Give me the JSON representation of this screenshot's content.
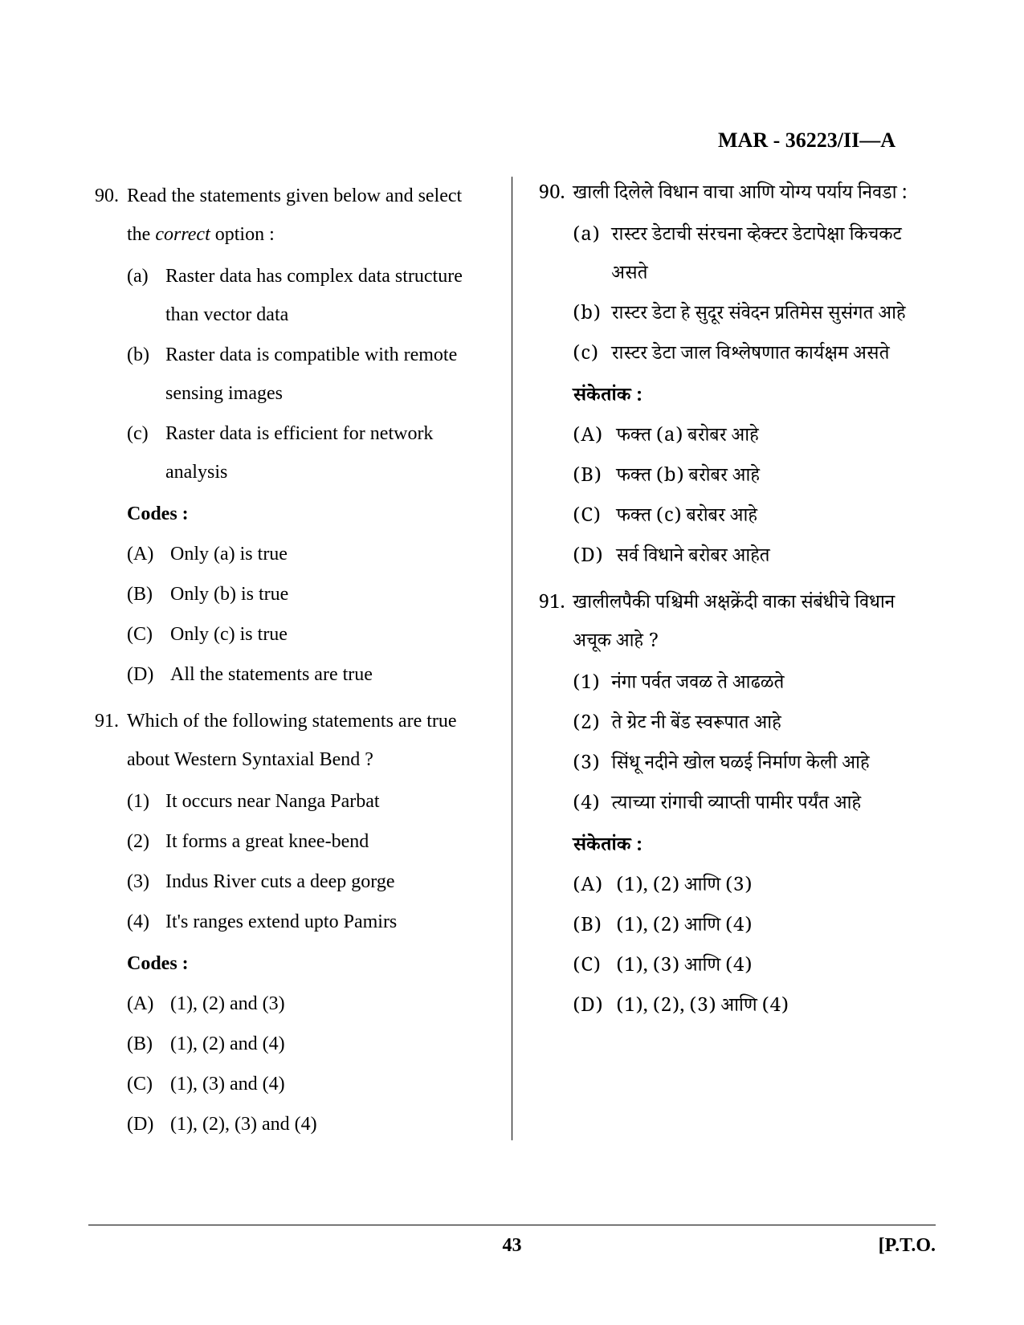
{
  "header": {
    "code": "MAR - 36223/II—A"
  },
  "footer": {
    "page_num": "43",
    "pto": "[P.T.O."
  },
  "left": {
    "q90": {
      "num": "90.",
      "text_pre": "Read the statements given below and select the ",
      "text_italic": "correct",
      "text_post": " option :",
      "subs": [
        {
          "label": "(a)",
          "text": "Raster data has complex data structure than vector data"
        },
        {
          "label": "(b)",
          "text": "Raster data is compatible with remote sensing images"
        },
        {
          "label": "(c)",
          "text": "Raster data is efficient for network analysis"
        }
      ],
      "codes_label": "Codes :",
      "codes": [
        {
          "label": "(A)",
          "text": "Only (a) is true"
        },
        {
          "label": "(B)",
          "text": "Only (b) is true"
        },
        {
          "label": "(C)",
          "text": "Only (c) is true"
        },
        {
          "label": "(D)",
          "text": "All the statements are true"
        }
      ]
    },
    "q91": {
      "num": "91.",
      "text": "Which of the following statements are true about Western Syntaxial Bend ?",
      "subs": [
        {
          "label": "(1)",
          "text": "It occurs near Nanga Parbat"
        },
        {
          "label": "(2)",
          "text": "It forms a great knee-bend"
        },
        {
          "label": "(3)",
          "text": "Indus River cuts a deep gorge"
        },
        {
          "label": "(4)",
          "text": "It's ranges extend upto Pamirs"
        }
      ],
      "codes_label": "Codes :",
      "codes": [
        {
          "label": "(A)",
          "text": "(1), (2) and (3)"
        },
        {
          "label": "(B)",
          "text": "(1), (2) and (4)"
        },
        {
          "label": "(C)",
          "text": "(1), (3) and (4)"
        },
        {
          "label": "(D)",
          "text": "(1), (2), (3) and (4)"
        }
      ]
    }
  },
  "right": {
    "q90": {
      "num": "90.",
      "text": "खाली दिलेले विधान वाचा आणि योग्य पर्याय निवडा :",
      "subs": [
        {
          "label": "(a)",
          "text": "रास्टर डेटाची संरचना व्हेक्टर डेटापेक्षा किचकट असते"
        },
        {
          "label": "(b)",
          "text": "रास्टर डेटा हे सुदूर संवेदन प्रतिमेस सुसंगत आहे"
        },
        {
          "label": "(c)",
          "text": "रास्टर डेटा जाल विश्लेषणात कार्यक्षम असते"
        }
      ],
      "codes_label": "संकेतांक :",
      "codes": [
        {
          "label": "(A)",
          "text": "फक्त (a) बरोबर आहे"
        },
        {
          "label": "(B)",
          "text": "फक्त (b) बरोबर आहे"
        },
        {
          "label": "(C)",
          "text": "फक्त (c) बरोबर आहे"
        },
        {
          "label": "(D)",
          "text": "सर्व विधाने बरोबर आहेत"
        }
      ]
    },
    "q91": {
      "num": "91.",
      "text": "खालीलपैकी पश्चिमी अक्षक्रेंदी वाका संबंधीचे विधान अचूक आहे ?",
      "subs": [
        {
          "label": "(1)",
          "text": "नंगा पर्वत जवळ ते आढळते"
        },
        {
          "label": "(2)",
          "text": "ते ग्रेट नी बेंड स्वरूपात आहे"
        },
        {
          "label": "(3)",
          "text": "सिंधू नदीने खोल घळई निर्माण केली आहे"
        },
        {
          "label": "(4)",
          "text": "त्याच्या रांगाची व्याप्ती पामीर पर्यंत आहे"
        }
      ],
      "codes_label": "संकेतांक :",
      "codes": [
        {
          "label": "(A)",
          "text": "(1), (2) आणि (3)"
        },
        {
          "label": "(B)",
          "text": "(1), (2) आणि (4)"
        },
        {
          "label": "(C)",
          "text": "(1), (3) आणि (4)"
        },
        {
          "label": "(D)",
          "text": "(1), (2), (3) आणि (4)"
        }
      ]
    }
  }
}
